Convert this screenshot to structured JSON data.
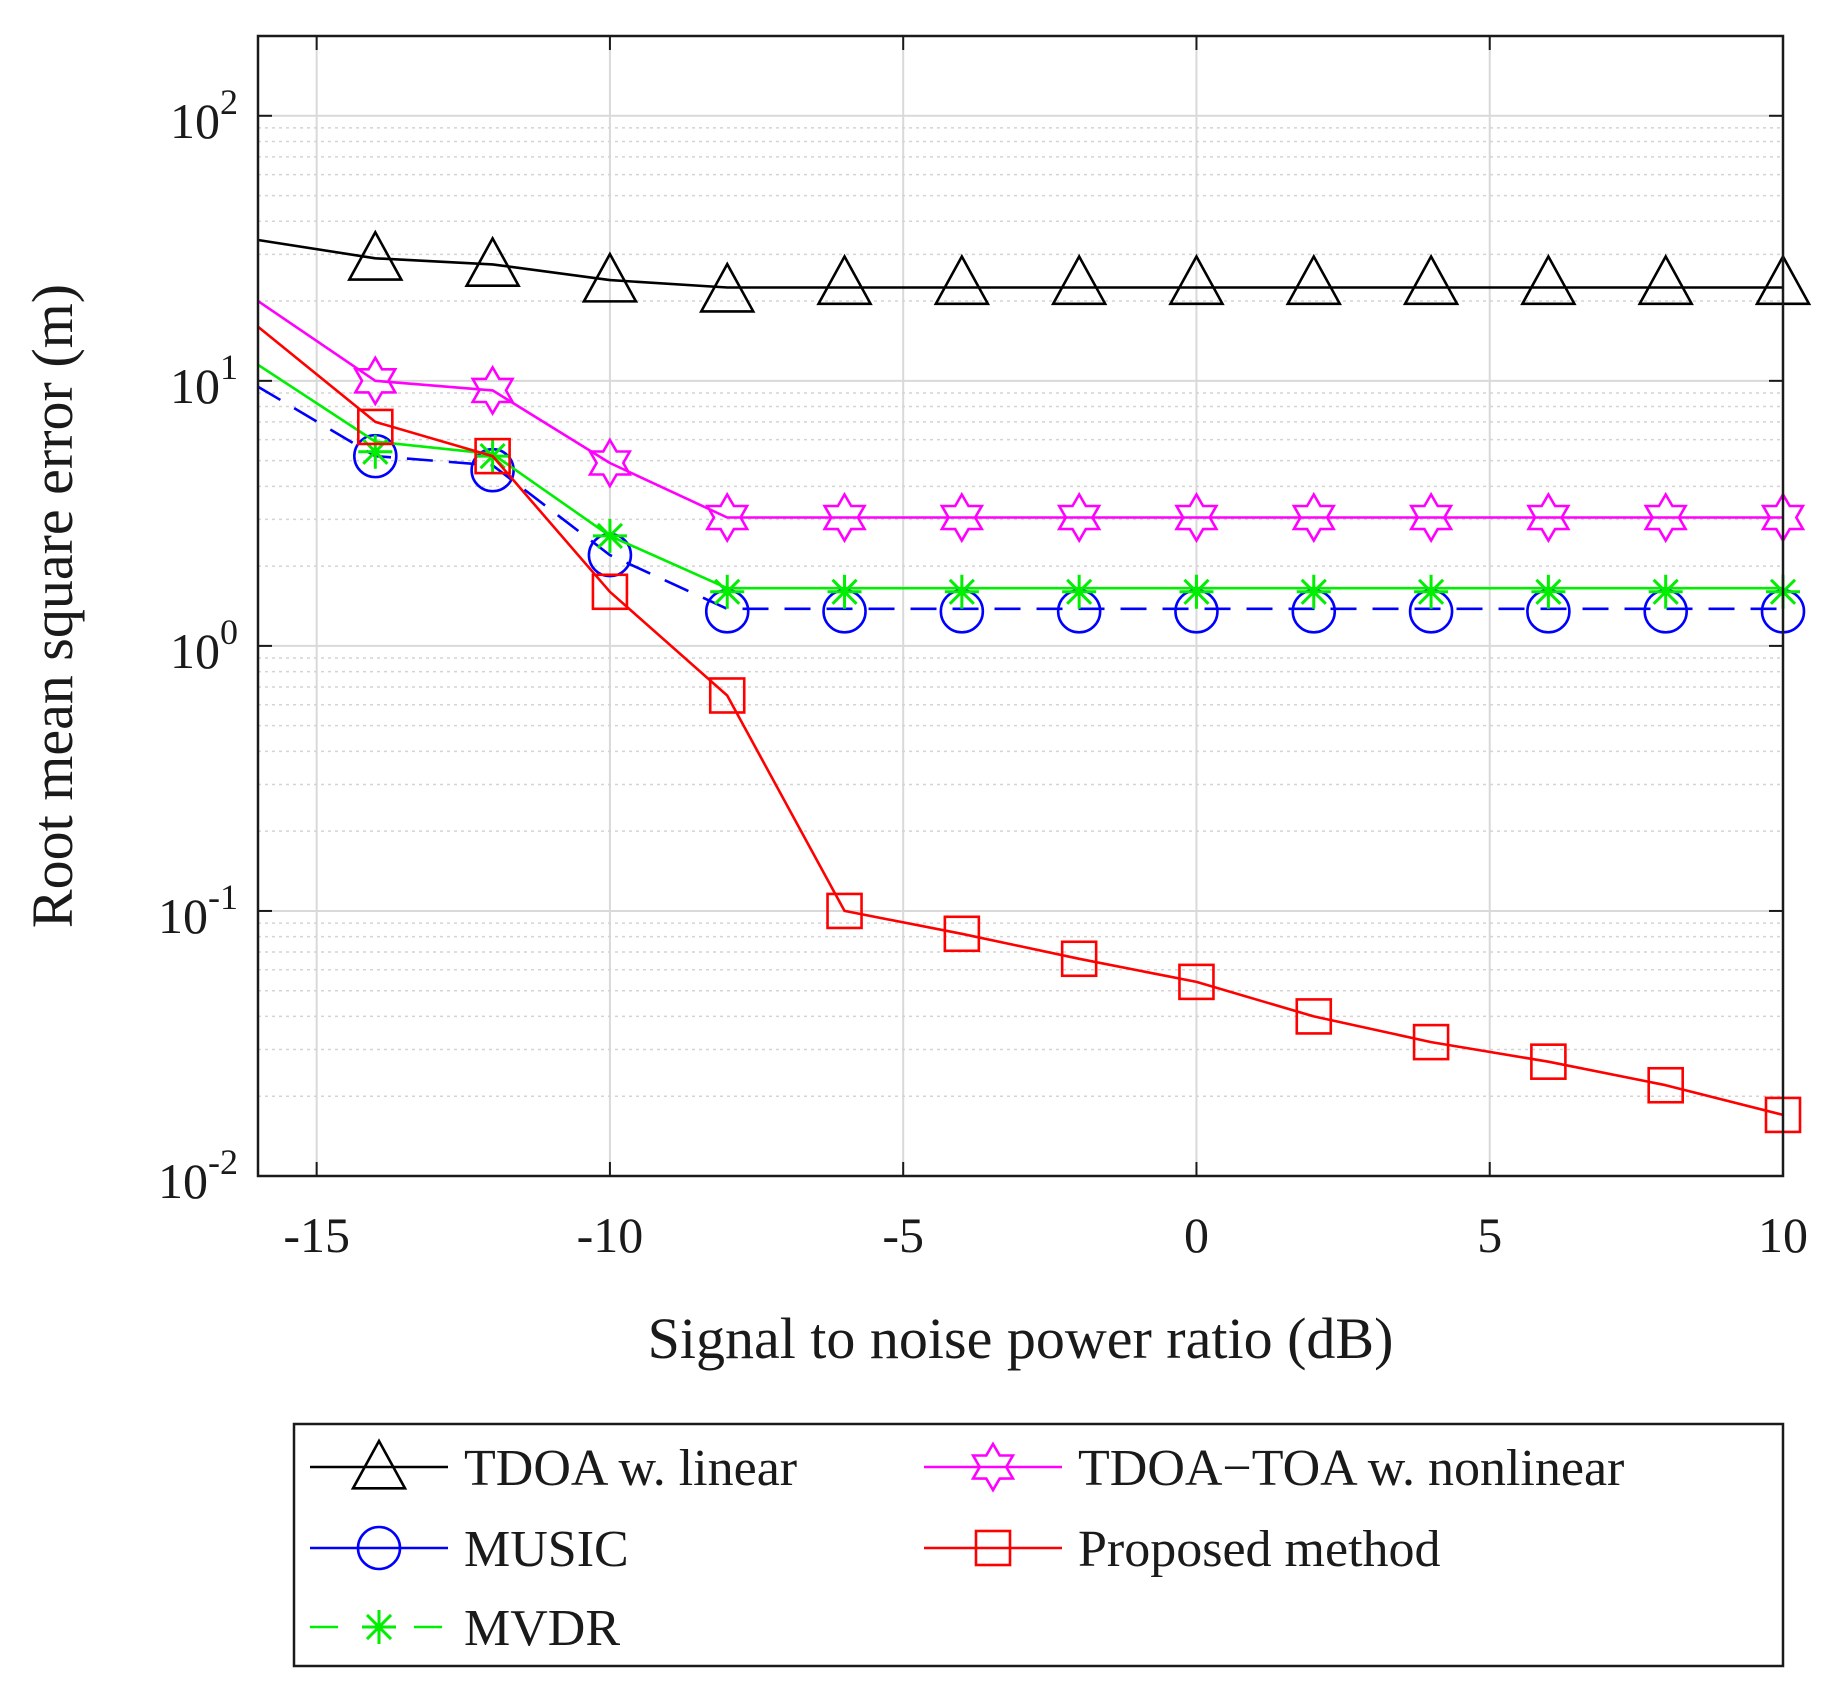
{
  "chart_data": {
    "type": "line",
    "title": "",
    "xlabel": "Signal to noise power ratio (dB)",
    "ylabel": "Root mean square error (m)",
    "xscale": "linear",
    "yscale": "log",
    "xlim": [
      -16,
      10
    ],
    "ylim": [
      0.01,
      200
    ],
    "grid": true,
    "xticks": [
      -15,
      -10,
      -5,
      0,
      5,
      10
    ],
    "xtick_labels": [
      "-15",
      "-10",
      "-5",
      "0",
      "5",
      "10"
    ],
    "yticks": [
      0.01,
      0.1,
      1,
      10,
      100
    ],
    "ytick_labels": [
      {
        "base": "10",
        "exp": "-2"
      },
      {
        "base": "10",
        "exp": "-1"
      },
      {
        "base": "10",
        "exp": "0"
      },
      {
        "base": "10",
        "exp": "1"
      },
      {
        "base": "10",
        "exp": "2"
      }
    ],
    "legend_position": "bottom (outside, two columns)",
    "series": [
      {
        "name": "TDOA w. linear",
        "color": "#000000",
        "line_style": "solid",
        "marker": "triangle",
        "x": [
          -16,
          -14,
          -12,
          -10,
          -8,
          -6,
          -4,
          -2,
          0,
          2,
          4,
          6,
          8,
          10
        ],
        "values": [
          34,
          29,
          27.5,
          24,
          22.5,
          22.5,
          22.5,
          22.5,
          22.5,
          22.5,
          22.5,
          22.5,
          22.5,
          22.5
        ],
        "marker_x": [
          -14,
          -12,
          -10,
          -8,
          -6,
          -4,
          -2,
          0,
          2,
          4,
          6,
          8,
          10
        ],
        "marker_values": [
          29,
          27.5,
          24,
          22,
          23.5,
          23.5,
          23.5,
          23.5,
          23.5,
          23.5,
          23.5,
          23.5,
          23.5
        ]
      },
      {
        "name": "TDOA−TOA w. nonlinear",
        "color": "#ff00ff",
        "line_style": "solid",
        "marker": "hexagram",
        "x": [
          -16,
          -14,
          -12,
          -10,
          -8,
          -6,
          -4,
          -2,
          0,
          2,
          4,
          6,
          8,
          10
        ],
        "values": [
          20,
          10,
          9.2,
          4.9,
          3.05,
          3.05,
          3.05,
          3.05,
          3.05,
          3.05,
          3.05,
          3.05,
          3.05,
          3.05
        ],
        "marker_x": [
          -14,
          -12,
          -10,
          -8,
          -6,
          -4,
          -2,
          0,
          2,
          4,
          6,
          8,
          10
        ],
        "marker_values": [
          10,
          9.2,
          4.9,
          3.05,
          3.05,
          3.05,
          3.05,
          3.05,
          3.05,
          3.05,
          3.05,
          3.05,
          3.05
        ]
      },
      {
        "name": "MUSIC",
        "color": "#0000ff",
        "line_style": "dashed",
        "marker": "circle",
        "x": [
          -16,
          -14,
          -12,
          -10,
          -8,
          -6,
          -4,
          -2,
          0,
          2,
          4,
          6,
          8,
          10
        ],
        "values": [
          9.5,
          5.2,
          4.8,
          2.2,
          1.38,
          1.38,
          1.38,
          1.38,
          1.38,
          1.38,
          1.38,
          1.38,
          1.38,
          1.38
        ],
        "marker_x": [
          -14,
          -12,
          -10,
          -8,
          -6,
          -4,
          -2,
          0,
          2,
          4,
          6,
          8,
          10
        ],
        "marker_values": [
          5.2,
          4.6,
          2.2,
          1.35,
          1.35,
          1.35,
          1.35,
          1.35,
          1.35,
          1.35,
          1.35,
          1.35,
          1.35
        ]
      },
      {
        "name": "MVDR",
        "color": "#00ee00",
        "line_style": "solid",
        "marker": "asterisk",
        "x": [
          -16,
          -14,
          -12,
          -10,
          -8,
          -6,
          -4,
          -2,
          0,
          2,
          4,
          6,
          8,
          10
        ],
        "values": [
          11.5,
          5.9,
          5.3,
          2.6,
          1.65,
          1.65,
          1.65,
          1.65,
          1.65,
          1.65,
          1.65,
          1.65,
          1.65,
          1.65
        ],
        "marker_x": [
          -14,
          -12,
          -10,
          -8,
          -6,
          -4,
          -2,
          0,
          2,
          4,
          6,
          8,
          10
        ],
        "marker_values": [
          5.4,
          5.2,
          2.6,
          1.6,
          1.6,
          1.6,
          1.6,
          1.6,
          1.6,
          1.6,
          1.6,
          1.6,
          1.6
        ]
      },
      {
        "name": "Proposed method",
        "color": "#ff0000",
        "line_style": "solid",
        "marker": "square",
        "x": [
          -16,
          -14,
          -12,
          -10,
          -8,
          -6,
          -4,
          -2,
          0,
          2,
          4,
          6,
          8,
          10
        ],
        "values": [
          16,
          7,
          5.2,
          1.6,
          0.65,
          0.1,
          0.082,
          0.066,
          0.054,
          0.04,
          0.032,
          0.027,
          0.022,
          0.017
        ],
        "marker_x": [
          -14,
          -12,
          -10,
          -8,
          -6,
          -4,
          -2,
          0,
          2,
          4,
          6,
          8,
          10
        ],
        "marker_values": [
          6.7,
          5.2,
          1.6,
          0.65,
          0.1,
          0.082,
          0.066,
          0.054,
          0.04,
          0.032,
          0.027,
          0.022,
          0.017
        ]
      }
    ],
    "legend": [
      {
        "series": 0,
        "label": "TDOA w. linear",
        "column": 0,
        "row": 0
      },
      {
        "series": 1,
        "label": "TDOA−TOA w. nonlinear",
        "column": 1,
        "row": 0
      },
      {
        "series": 2,
        "label": "MUSIC",
        "column": 0,
        "row": 1
      },
      {
        "series": 4,
        "label": "Proposed method",
        "column": 1,
        "row": 1
      },
      {
        "series": 3,
        "label": "MVDR",
        "legend_line_style": "dashed",
        "column": 0,
        "row": 2
      }
    ]
  }
}
